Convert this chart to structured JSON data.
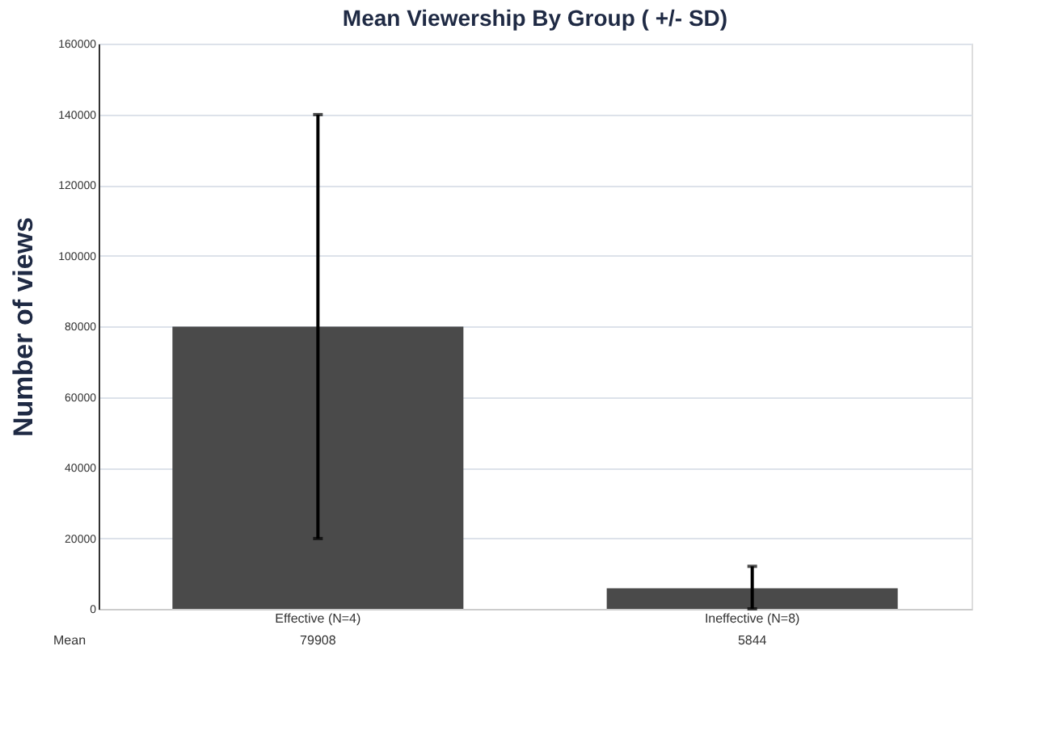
{
  "chart_data": {
    "type": "bar",
    "title": "Mean Viewership By Group ( +/- SD)",
    "ylabel": "Number of views",
    "categories": [
      "Effective (N=4)",
      "Ineffective (N=8)"
    ],
    "values": [
      79908,
      5844
    ],
    "color": "#4a4a4a",
    "errors": [
      60000,
      [
        5844,
        6200
      ]
    ],
    "data_labels": true,
    "annotations": [
      "Mean"
    ],
    "ylim": [
      0,
      160000
    ],
    "yticks": [
      0,
      20000,
      40000,
      60000,
      80000,
      100000,
      120000,
      140000,
      160000
    ],
    "grid": "y"
  }
}
